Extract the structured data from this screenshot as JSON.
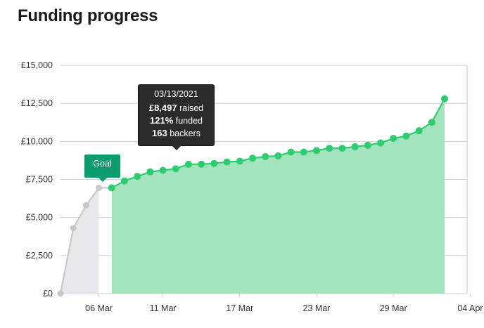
{
  "page": {
    "title": "Funding progress"
  },
  "tooltip": {
    "date": "03/13/2021",
    "raised_value": "£8,497",
    "raised_label": "raised",
    "funded_value": "121%",
    "funded_label": "funded",
    "backers_value": "163",
    "backers_label": "backers"
  },
  "goal_label": "Goal",
  "colors": {
    "funded_line": "#2ecc71",
    "funded_fill": "#a3e4be",
    "pre_goal_line": "#c8c8cc",
    "pre_goal_fill": "#e8e8ec",
    "grid": "#cfcfcf",
    "goal_badge": "#0e9b6d"
  },
  "chart_data": {
    "type": "area",
    "title": "Funding progress",
    "xlabel": "",
    "ylabel": "",
    "y_ticks": [
      "£0",
      "£2,500",
      "£5,000",
      "£7,500",
      "£10,000",
      "£12,500",
      "£15,000"
    ],
    "x_ticks": [
      "06 Mar",
      "11 Mar",
      "17 Mar",
      "23 Mar",
      "29 Mar",
      "04 Apr"
    ],
    "ylim": [
      0,
      15000
    ],
    "grid": true,
    "series": [
      {
        "x": [
          "03/03/2021",
          "03/04/2021",
          "03/05/2021",
          "03/06/2021"
        ],
        "values": [
          0,
          4300,
          5800,
          6950
        ]
      },
      {
        "x": [
          "03/07/2021",
          "03/08/2021",
          "03/09/2021",
          "03/10/2021",
          "03/11/2021",
          "03/12/2021",
          "03/13/2021",
          "03/14/2021",
          "03/15/2021",
          "03/16/2021",
          "03/17/2021",
          "03/18/2021",
          "03/19/2021",
          "03/20/2021",
          "03/21/2021",
          "03/22/2021",
          "03/23/2021",
          "03/24/2021",
          "03/25/2021",
          "03/26/2021",
          "03/27/2021",
          "03/28/2021",
          "03/29/2021",
          "03/30/2021",
          "03/31/2021",
          "04/01/2021",
          "04/02/2021"
        ],
        "values": [
          6950,
          7400,
          7700,
          8000,
          8100,
          8200,
          8497,
          8500,
          8550,
          8650,
          8700,
          8900,
          9000,
          9050,
          9300,
          9300,
          9400,
          9550,
          9550,
          9650,
          9750,
          9900,
          10200,
          10350,
          10700,
          11250,
          12800
        ]
      }
    ]
  }
}
